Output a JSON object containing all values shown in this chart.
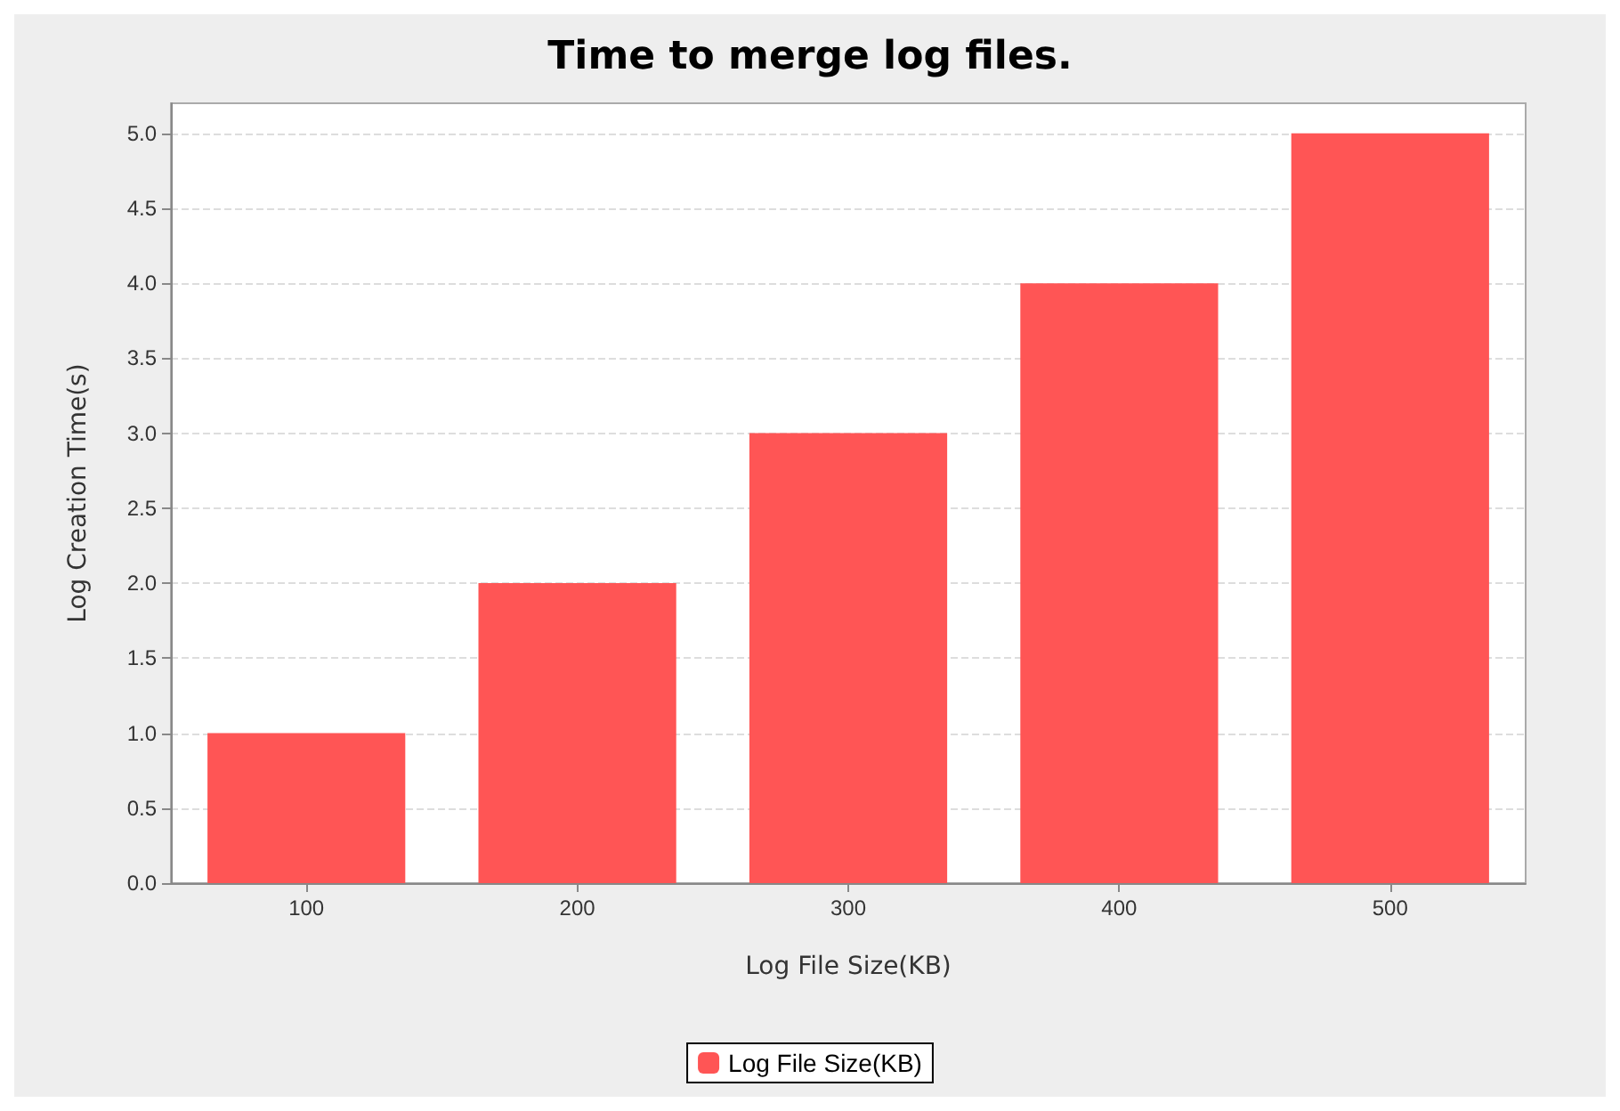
{
  "chart_data": {
    "type": "bar",
    "title": "Time to merge log files.",
    "xlabel": "Log File Size(KB)",
    "ylabel": "Log Creation Time(s)",
    "categories": [
      "100",
      "200",
      "300",
      "400",
      "500"
    ],
    "series": [
      {
        "name": "Log File Size(KB)",
        "color": "#ff5555",
        "values": [
          1,
          2,
          3,
          4,
          5
        ]
      }
    ],
    "ylim": [
      0,
      5.2
    ],
    "yticks": [
      {
        "value": 0,
        "label": "0.0"
      },
      {
        "value": 0.5,
        "label": "0.5"
      },
      {
        "value": 1,
        "label": "1.0"
      },
      {
        "value": 1.5,
        "label": "1.5"
      },
      {
        "value": 2,
        "label": "2.0"
      },
      {
        "value": 2.5,
        "label": "2.5"
      },
      {
        "value": 3,
        "label": "3.0"
      },
      {
        "value": 3.5,
        "label": "3.5"
      },
      {
        "value": 4,
        "label": "4.0"
      },
      {
        "value": 4.5,
        "label": "4.5"
      },
      {
        "value": 5,
        "label": "5.0"
      }
    ],
    "grid": "y",
    "legend": "bottom"
  }
}
